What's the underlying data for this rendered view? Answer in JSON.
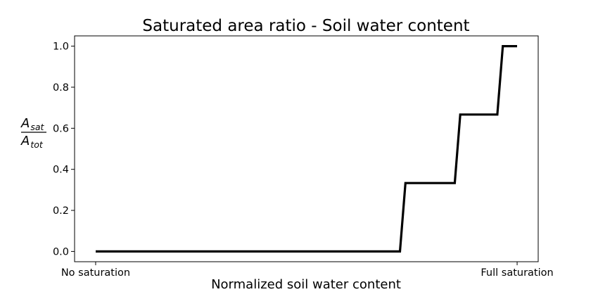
{
  "chart_data": {
    "type": "line",
    "title": "Saturated area ratio - Soil water content",
    "xlabel": "Normalized soil water content",
    "ylabel": {
      "numerator": "A",
      "numerator_sub": "sat",
      "denominator": "A",
      "denominator_sub": "tot"
    },
    "x_tick_labels": [
      "No saturation",
      "Full saturation"
    ],
    "y_ticks": [
      "0.0",
      "0.2",
      "0.4",
      "0.6",
      "0.8",
      "1.0"
    ],
    "xlim": [
      -0.05,
      1.05
    ],
    "ylim": [
      -0.05,
      1.05
    ],
    "grid": false,
    "legend": "none",
    "line_color": "#000000",
    "series": [
      {
        "x": [
          0.0,
          0.722,
          0.735,
          0.852,
          0.865,
          0.953,
          0.966,
          1.0
        ],
        "y": [
          0.0,
          0.0,
          0.333,
          0.333,
          0.667,
          0.667,
          1.0,
          1.0
        ]
      }
    ]
  }
}
